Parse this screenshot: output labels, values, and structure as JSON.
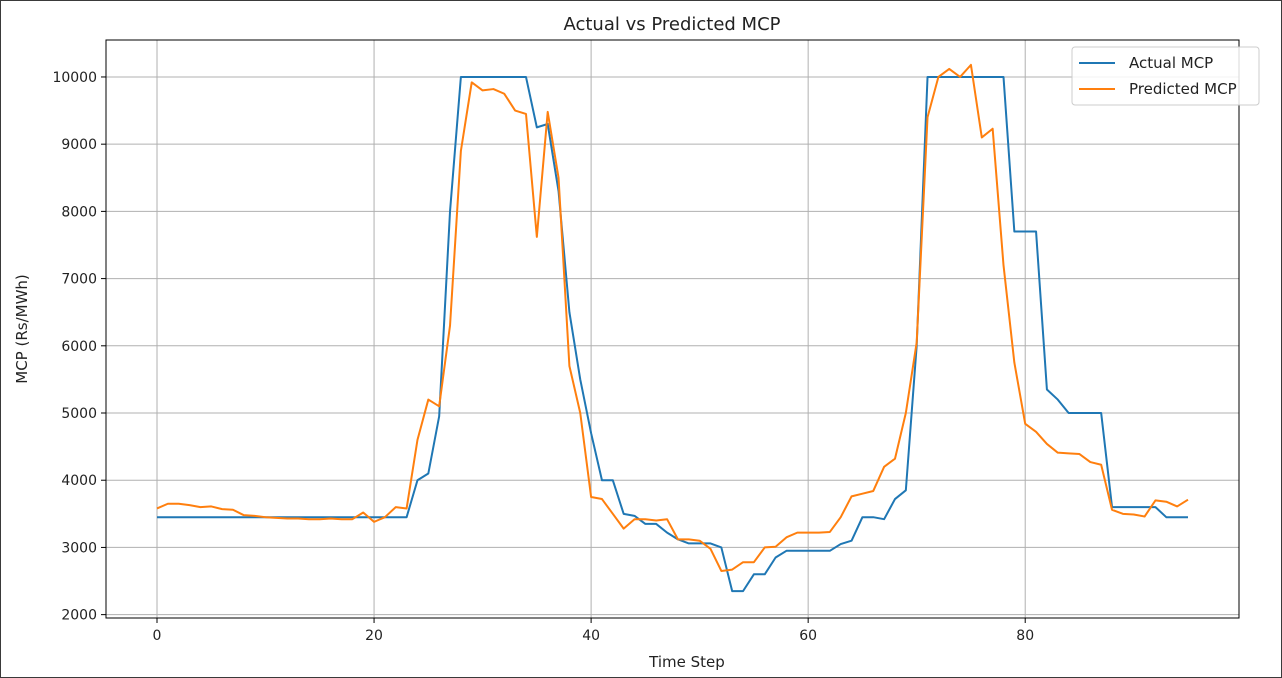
{
  "chart_data": {
    "type": "line",
    "title": "Actual vs Predicted MCP",
    "xlabel": "Time Step",
    "ylabel": "MCP (Rs/MWh)",
    "xlim": [
      -4.7,
      99.7
    ],
    "ylim": [
      1950,
      10550
    ],
    "xticks": [
      0,
      20,
      40,
      60,
      80
    ],
    "yticks": [
      2000,
      3000,
      4000,
      5000,
      6000,
      7000,
      8000,
      9000,
      10000
    ],
    "grid": true,
    "legend": "top-right",
    "x": [
      0,
      1,
      2,
      3,
      4,
      5,
      6,
      7,
      8,
      9,
      10,
      11,
      12,
      13,
      14,
      15,
      16,
      17,
      18,
      19,
      20,
      21,
      22,
      23,
      24,
      25,
      26,
      27,
      28,
      29,
      30,
      31,
      32,
      33,
      34,
      35,
      36,
      37,
      38,
      39,
      40,
      41,
      42,
      43,
      44,
      45,
      46,
      47,
      48,
      49,
      50,
      51,
      52,
      53,
      54,
      55,
      56,
      57,
      58,
      59,
      60,
      61,
      62,
      63,
      64,
      65,
      66,
      67,
      68,
      69,
      70,
      71,
      72,
      73,
      74,
      75,
      76,
      77,
      78,
      79,
      80,
      81,
      82,
      83,
      84,
      85,
      86,
      87,
      88,
      89,
      90,
      91,
      92,
      93,
      94,
      95
    ],
    "series": [
      {
        "name": "Actual MCP",
        "color": "#1f77b4",
        "values": [
          3450,
          3450,
          3450,
          3450,
          3450,
          3450,
          3450,
          3450,
          3450,
          3450,
          3450,
          3450,
          3450,
          3450,
          3450,
          3450,
          3450,
          3450,
          3450,
          3450,
          3450,
          3450,
          3450,
          3450,
          4000,
          4100,
          4950,
          8000,
          10000,
          10000,
          10000,
          10000,
          10000,
          10000,
          10000,
          9250,
          9300,
          8300,
          6500,
          5500,
          4700,
          4000,
          4000,
          3500,
          3470,
          3350,
          3350,
          3220,
          3120,
          3060,
          3060,
          3060,
          3000,
          2350,
          2350,
          2600,
          2600,
          2850,
          2950,
          2950,
          2950,
          2950,
          2950,
          3050,
          3100,
          3450,
          3450,
          3420,
          3720,
          3850,
          6000,
          10000,
          10000,
          10000,
          10000,
          10000,
          10000,
          10000,
          10000,
          7700,
          7700,
          7700,
          5350,
          5200,
          5000,
          5000,
          5000,
          5000,
          3600,
          3600,
          3600,
          3600,
          3600,
          3450,
          3450,
          3450
        ]
      },
      {
        "name": "Predicted MCP",
        "color": "#ff7f0e",
        "values": [
          3580,
          3650,
          3650,
          3630,
          3600,
          3610,
          3570,
          3560,
          3480,
          3470,
          3450,
          3440,
          3430,
          3430,
          3420,
          3420,
          3430,
          3420,
          3420,
          3520,
          3380,
          3450,
          3600,
          3580,
          4600,
          5200,
          5100,
          6300,
          8900,
          9920,
          9800,
          9820,
          9750,
          9500,
          9450,
          7620,
          9480,
          8500,
          5700,
          5000,
          3750,
          3720,
          3500,
          3280,
          3420,
          3420,
          3400,
          3420,
          3120,
          3120,
          3100,
          2980,
          2650,
          2670,
          2780,
          2780,
          3000,
          3010,
          3150,
          3220,
          3220,
          3220,
          3230,
          3450,
          3760,
          3800,
          3840,
          4200,
          4320,
          5000,
          6050,
          9400,
          10000,
          10120,
          10000,
          10180,
          9100,
          9230,
          7200,
          5750,
          4840,
          4720,
          4540,
          4410,
          4400,
          4390,
          4270,
          4230,
          3560,
          3500,
          3490,
          3460,
          3700,
          3680,
          3610,
          3710
        ]
      }
    ]
  }
}
